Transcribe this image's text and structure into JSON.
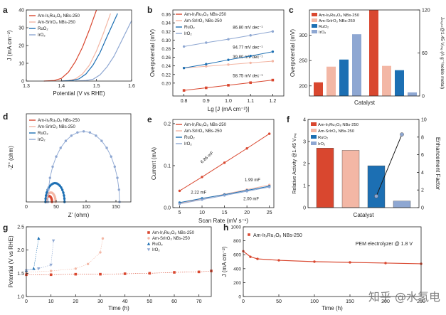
{
  "figure": {
    "watermark": "知乎 @水氢电"
  },
  "colors": {
    "ir_ru": "#d9472f",
    "sr_ir": "#f3b7a5",
    "ruo2": "#1c6fb3",
    "iro2": "#8ea7d2",
    "enh": "#1a1a1a",
    "enh_point": "#8ea7d2"
  },
  "chart_data": [
    {
      "panel": "a",
      "type": "line",
      "xlabel": "Potential (V vs RHE)",
      "ylabel": "J (mA cm⁻²)",
      "xlim": [
        1.3,
        1.6
      ],
      "ylim": [
        0,
        40
      ],
      "xticks": [
        "1.3",
        "1.4",
        "1.5",
        "1.6"
      ],
      "yticks": [
        "0",
        "10",
        "20",
        "30",
        "40"
      ],
      "series": [
        {
          "name": "Am-IrₓRu₃O₈ NBs-250",
          "color": "ir_ru",
          "x": [
            1.35,
            1.38,
            1.4,
            1.42,
            1.44,
            1.46,
            1.48,
            1.5
          ],
          "y": [
            0,
            0.3,
            1.5,
            5,
            11,
            19,
            29,
            40
          ]
        },
        {
          "name": "Am-SrIrO₃ NBs-250",
          "color": "sr_ir",
          "x": [
            1.39,
            1.42,
            1.44,
            1.46,
            1.48,
            1.5,
            1.52,
            1.54
          ],
          "y": [
            0,
            0.3,
            1.2,
            4,
            9,
            17,
            27,
            38
          ]
        },
        {
          "name": "RuO₂",
          "color": "ruo2",
          "x": [
            1.4,
            1.43,
            1.45,
            1.47,
            1.49,
            1.51,
            1.53,
            1.56
          ],
          "y": [
            0,
            0.3,
            1.2,
            4,
            9,
            16,
            25,
            38
          ]
        },
        {
          "name": "IrO₂",
          "color": "iro2",
          "x": [
            1.44,
            1.47,
            1.49,
            1.51,
            1.53,
            1.55,
            1.57,
            1.6
          ],
          "y": [
            0,
            0.3,
            1,
            3.5,
            8,
            14,
            22,
            34
          ]
        }
      ]
    },
    {
      "panel": "b",
      "type": "scatter-line",
      "xlabel": "Lg [J (mA cm⁻²)]",
      "ylabel": "Overpotential (mV)",
      "xlim": [
        0.75,
        1.25
      ],
      "ylim": [
        0.17,
        0.37
      ],
      "xticks": [
        "0.8",
        "0.9",
        "1.0",
        "1.1",
        "1.2"
      ],
      "yticks": [
        "0.20",
        "0.22",
        "0.24",
        "0.26",
        "0.28",
        "0.30",
        "0.32",
        "0.34",
        "0.36"
      ],
      "series": [
        {
          "name": "Am-IrₓRu₃O₈ NBs-250",
          "color": "ir_ru",
          "x": [
            0.8,
            0.9,
            1.0,
            1.1,
            1.2
          ],
          "y": [
            0.183,
            0.189,
            0.195,
            0.201,
            0.207
          ],
          "slope": "58.75 mV dec⁻¹"
        },
        {
          "name": "Am-SrIrO₃ NBs-250",
          "color": "sr_ir",
          "x": [
            0.8,
            0.9,
            1.0,
            1.1,
            1.2
          ],
          "y": [
            0.235,
            0.239,
            0.243,
            0.247,
            0.251
          ],
          "slope": "39.80 mV dec⁻¹"
        },
        {
          "name": "RuO₂",
          "color": "ruo2",
          "x": [
            0.8,
            0.9,
            1.0,
            1.1,
            1.2
          ],
          "y": [
            0.235,
            0.244,
            0.254,
            0.263,
            0.273
          ],
          "slope": "94.77 mV dec⁻¹"
        },
        {
          "name": "IrO₂",
          "color": "iro2",
          "x": [
            0.8,
            0.9,
            1.0,
            1.1,
            1.2
          ],
          "y": [
            0.285,
            0.294,
            0.302,
            0.311,
            0.32
          ],
          "slope": "86.80 mV dec⁻¹"
        }
      ]
    },
    {
      "panel": "c",
      "type": "bar",
      "xlabel": "Catalyst",
      "ylabel": "Overpotential (mV)",
      "ylabel_right": "Jₘₐₛₛ@1.45 Vᵣₕₑ (A g⁻¹noble metal)",
      "ylim": [
        180,
        350
      ],
      "yticks": [
        "200",
        "250",
        "300"
      ],
      "ylim_right": [
        0,
        120
      ],
      "yticks_right": [
        "0",
        "60",
        "120"
      ],
      "overpotential": [
        207,
        238,
        252,
        302
      ],
      "mass_activity": [
        120,
        42,
        36,
        5
      ],
      "series_names": [
        "Am-IrₓRu₃O₈ NBs-250",
        "Am-SrIrO₃ NBs-250",
        "RuO₂",
        "IrO₂"
      ]
    },
    {
      "panel": "d",
      "type": "scatter",
      "xlabel": "Z' (ohm)",
      "ylabel": "-Z'' (ohm)",
      "xlim": [
        0,
        175
      ],
      "ylim": [
        0,
        60
      ],
      "xticks": [
        "0",
        "50",
        "100",
        "150"
      ],
      "yticks": [],
      "series": [
        {
          "name": "Am-IrₓRu₃O₈ NBs-250",
          "color": "ir_ru",
          "center": 38,
          "radius": 5
        },
        {
          "name": "Am-SrIrO₃ NBs-250",
          "color": "sr_ir",
          "center": 41,
          "radius": 8
        },
        {
          "name": "RuO₂",
          "color": "ruo2",
          "center": 48,
          "radius": 16
        },
        {
          "name": "IrO₂",
          "color": "iro2",
          "center": 96,
          "radius": 60
        }
      ]
    },
    {
      "panel": "e",
      "type": "scatter-line",
      "xlabel": "Scan Rate (mV s⁻¹)",
      "ylabel": "Current (mA)",
      "xlim": [
        5,
        25
      ],
      "ylim": [
        0,
        0.2
      ],
      "xticks": [
        "5",
        "10",
        "15",
        "20",
        "25"
      ],
      "yticks": [
        "0.0",
        "0.1",
        "0.2"
      ],
      "series": [
        {
          "name": "Am-IrₓRu₃O₈ NBs-250",
          "color": "ir_ru",
          "x": [
            5,
            10,
            15,
            20,
            25
          ],
          "y": [
            0.04,
            0.073,
            0.107,
            0.141,
            0.176
          ],
          "cdl": "6.86 mF"
        },
        {
          "name": "Am-SrIrO₃ NBs-250",
          "color": "sr_ir",
          "x": [
            5,
            10,
            15,
            20,
            25
          ],
          "y": [
            0.01,
            0.021,
            0.032,
            0.043,
            0.054
          ],
          "cdl": "2.22 mF"
        },
        {
          "name": "RuO₂",
          "color": "ruo2",
          "x": [
            5,
            10,
            15,
            20,
            25
          ],
          "y": [
            0.012,
            0.022,
            0.031,
            0.041,
            0.051
          ],
          "cdl": "1.99 mF"
        },
        {
          "name": "IrO₂",
          "color": "iro2",
          "x": [
            5,
            10,
            15,
            20,
            25
          ],
          "y": [
            0.009,
            0.019,
            0.029,
            0.039,
            0.049
          ],
          "cdl": "2.00 mF"
        }
      ]
    },
    {
      "panel": "f",
      "type": "bar",
      "xlabel": "Catalyst",
      "ylabel": "Relative Activity @1.45 Vᵣₕₑ",
      "ylabel_right": "Enhancement Factor",
      "ylim": [
        0,
        4
      ],
      "yticks": [
        "0",
        "1",
        "2",
        "3",
        "4"
      ],
      "ylim_right": [
        0,
        10
      ],
      "yticks_right": [
        "0",
        "2",
        "4",
        "6",
        "8",
        "10"
      ],
      "relative_activity": [
        2.7,
        2.6,
        1.9,
        0.3
      ],
      "enhancement_factor": [
        null,
        null,
        1.3,
        8.3
      ],
      "series_names": [
        "Am-IrₓRu₃O₈ NBs-250",
        "Am-SrIrO₃ NBs-250",
        "RuO₂",
        "IrO₂"
      ]
    },
    {
      "panel": "g",
      "type": "scatter",
      "xlabel": "Time (h)",
      "ylabel": "Potential (V vs RHE)",
      "xlim": [
        0,
        75
      ],
      "ylim": [
        1.0,
        2.5
      ],
      "xticks": [
        "0",
        "10",
        "20",
        "30",
        "40",
        "50",
        "60",
        "70"
      ],
      "yticks": [
        "1.0",
        "1.5",
        "2.0",
        "2.5"
      ],
      "series": [
        {
          "name": "Am-IrₓRu₃O₈ NBs-250",
          "color": "ir_ru",
          "x": [
            0,
            10,
            20,
            30,
            40,
            50,
            60,
            70,
            75
          ],
          "y": [
            1.47,
            1.47,
            1.48,
            1.48,
            1.49,
            1.5,
            1.52,
            1.53,
            1.55
          ]
        },
        {
          "name": "Am-SrIrO₃ NBs-250",
          "color": "sr_ir",
          "x": [
            0,
            10,
            20,
            25,
            30,
            31
          ],
          "y": [
            1.52,
            1.55,
            1.6,
            1.7,
            1.95,
            2.25
          ]
        },
        {
          "name": "RuO₂",
          "color": "ruo2",
          "x": [
            0,
            3,
            5
          ],
          "y": [
            1.56,
            1.6,
            2.25
          ]
        },
        {
          "name": "IrO₂",
          "color": "iro2",
          "x": [
            0,
            5,
            10,
            11
          ],
          "y": [
            1.56,
            1.6,
            1.68,
            2.2
          ]
        }
      ]
    },
    {
      "panel": "h",
      "type": "scatter",
      "xlabel": "Time (h)",
      "ylabel": "J (mA cm⁻²)",
      "xlim": [
        0,
        250
      ],
      "ylim": [
        0,
        1000
      ],
      "xticks": [
        "0",
        "50",
        "100",
        "150",
        "200",
        "250"
      ],
      "yticks": [
        "0",
        "200",
        "400",
        "600",
        "800",
        "1000"
      ],
      "annotation": "PEM electrolyzer @ 1.8 V",
      "series": [
        {
          "name": "Am-IrₓRu₃O₈ NBs-250",
          "color": "ir_ru",
          "x": [
            0,
            10,
            20,
            50,
            100,
            150,
            200,
            250
          ],
          "y": [
            650,
            570,
            540,
            520,
            500,
            490,
            480,
            470
          ]
        }
      ]
    }
  ]
}
